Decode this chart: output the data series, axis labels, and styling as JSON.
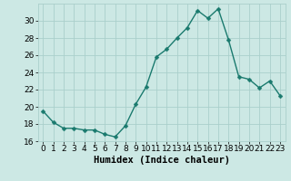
{
  "x": [
    0,
    1,
    2,
    3,
    4,
    5,
    6,
    7,
    8,
    9,
    10,
    11,
    12,
    13,
    14,
    15,
    16,
    17,
    18,
    19,
    20,
    21,
    22,
    23
  ],
  "y": [
    19.5,
    18.2,
    17.5,
    17.5,
    17.3,
    17.3,
    16.8,
    16.5,
    17.8,
    20.3,
    22.3,
    25.8,
    26.7,
    28.0,
    29.2,
    31.2,
    30.3,
    31.4,
    27.8,
    23.5,
    23.2,
    22.2,
    23.0,
    21.3
  ],
  "line_color": "#1a7a6e",
  "marker_color": "#1a7a6e",
  "bg_color": "#cce8e4",
  "grid_color": "#aacfcb",
  "xlabel": "Humidex (Indice chaleur)",
  "ylim": [
    16,
    32
  ],
  "xlim": [
    -0.5,
    23.5
  ],
  "yticks": [
    16,
    18,
    20,
    22,
    24,
    26,
    28,
    30
  ],
  "xtick_labels": [
    "0",
    "1",
    "2",
    "3",
    "4",
    "5",
    "6",
    "7",
    "8",
    "9",
    "10",
    "11",
    "12",
    "13",
    "14",
    "15",
    "16",
    "17",
    "18",
    "19",
    "20",
    "21",
    "22",
    "23"
  ],
  "xlabel_fontsize": 7.5,
  "tick_fontsize": 6.5,
  "line_width": 1.0,
  "marker_size": 2.5
}
